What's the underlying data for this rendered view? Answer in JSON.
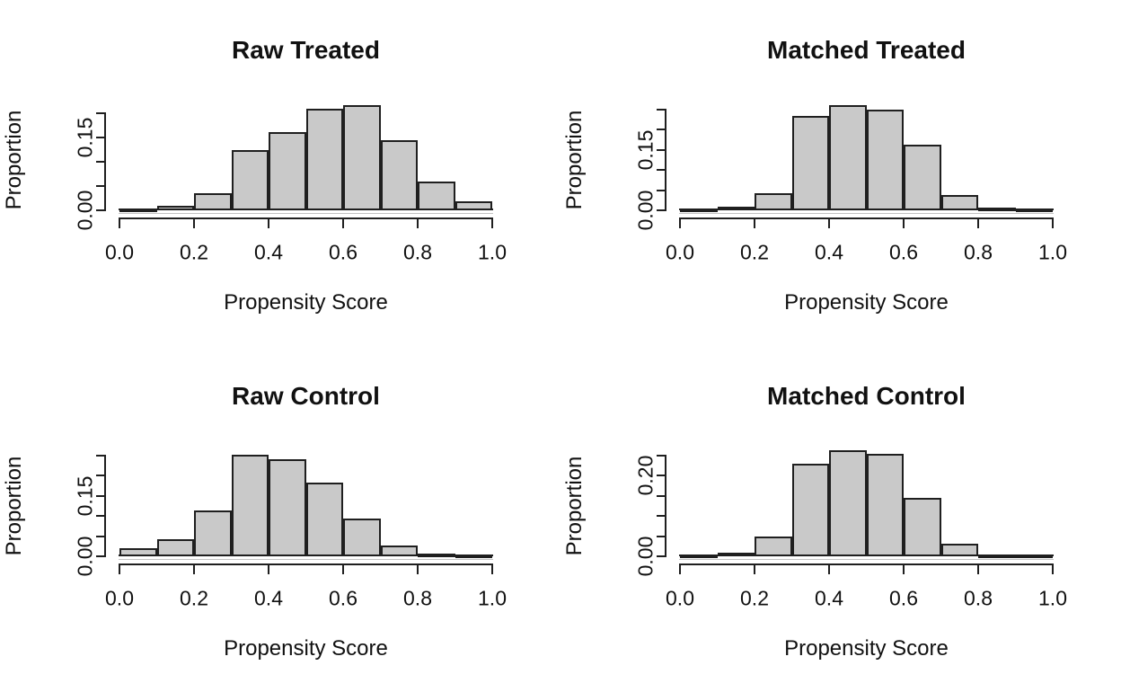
{
  "chart_data": [
    {
      "type": "bar",
      "title": "Raw Treated",
      "xlabel": "Propensity Score",
      "ylabel": "Proportion",
      "bins": {
        "start": 0.0,
        "end": 1.0,
        "bin_width": 0.1
      },
      "values": [
        0.003,
        0.01,
        0.036,
        0.125,
        0.161,
        0.21,
        0.217,
        0.144,
        0.06,
        0.019
      ],
      "x_tick_labels": [
        "0.0",
        "0.2",
        "0.4",
        "0.6",
        "0.8",
        "1.0"
      ],
      "ylim": [
        0,
        0.2
      ],
      "y_tick_step": 0.05,
      "y_tick_labels_shown": [
        {
          "value": 0.0,
          "label": "0.00"
        },
        {
          "value": 0.15,
          "label": "0.15"
        }
      ],
      "grid": false,
      "legend": null
    },
    {
      "type": "bar",
      "title": "Matched Treated",
      "xlabel": "Propensity Score",
      "ylabel": "Proportion",
      "bins": {
        "start": 0.0,
        "end": 1.0,
        "bin_width": 0.1
      },
      "values": [
        0.004,
        0.01,
        0.042,
        0.235,
        0.262,
        0.251,
        0.162,
        0.037,
        0.007,
        0.003
      ],
      "x_tick_labels": [
        "0.0",
        "0.2",
        "0.4",
        "0.6",
        "0.8",
        "1.0"
      ],
      "ylim": [
        0,
        0.25
      ],
      "y_tick_step": 0.05,
      "y_tick_labels_shown": [
        {
          "value": 0.0,
          "label": "0.00"
        },
        {
          "value": 0.15,
          "label": "0.15"
        }
      ],
      "grid": false,
      "legend": null
    },
    {
      "type": "bar",
      "title": "Raw Control",
      "xlabel": "Propensity Score",
      "ylabel": "Proportion",
      "bins": {
        "start": 0.0,
        "end": 1.0,
        "bin_width": 0.1
      },
      "values": [
        0.021,
        0.042,
        0.114,
        0.252,
        0.24,
        0.182,
        0.093,
        0.027,
        0.007,
        0.005
      ],
      "x_tick_labels": [
        "0.0",
        "0.2",
        "0.4",
        "0.6",
        "0.8",
        "1.0"
      ],
      "ylim": [
        0,
        0.25
      ],
      "y_tick_step": 0.05,
      "y_tick_labels_shown": [
        {
          "value": 0.0,
          "label": "0.00"
        },
        {
          "value": 0.15,
          "label": "0.15"
        }
      ],
      "grid": false,
      "legend": null
    },
    {
      "type": "bar",
      "title": "Matched Control",
      "xlabel": "Propensity Score",
      "ylabel": "Proportion",
      "bins": {
        "start": 0.0,
        "end": 1.0,
        "bin_width": 0.1
      },
      "values": [
        0.004,
        0.009,
        0.048,
        0.23,
        0.263,
        0.254,
        0.146,
        0.031,
        0.005,
        0.002
      ],
      "x_tick_labels": [
        "0.0",
        "0.2",
        "0.4",
        "0.6",
        "0.8",
        "1.0"
      ],
      "ylim": [
        0,
        0.25
      ],
      "y_tick_step": 0.05,
      "y_tick_labels_shown": [
        {
          "value": 0.0,
          "label": "0.00"
        },
        {
          "value": 0.2,
          "label": "0.20"
        }
      ],
      "grid": false,
      "legend": null
    }
  ],
  "colors": {
    "background": "#ffffff",
    "bar_fill": "#c9c9c9",
    "bar_border": "#1f1f1f",
    "axis": "#1f1f1f",
    "text": "#111111"
  }
}
